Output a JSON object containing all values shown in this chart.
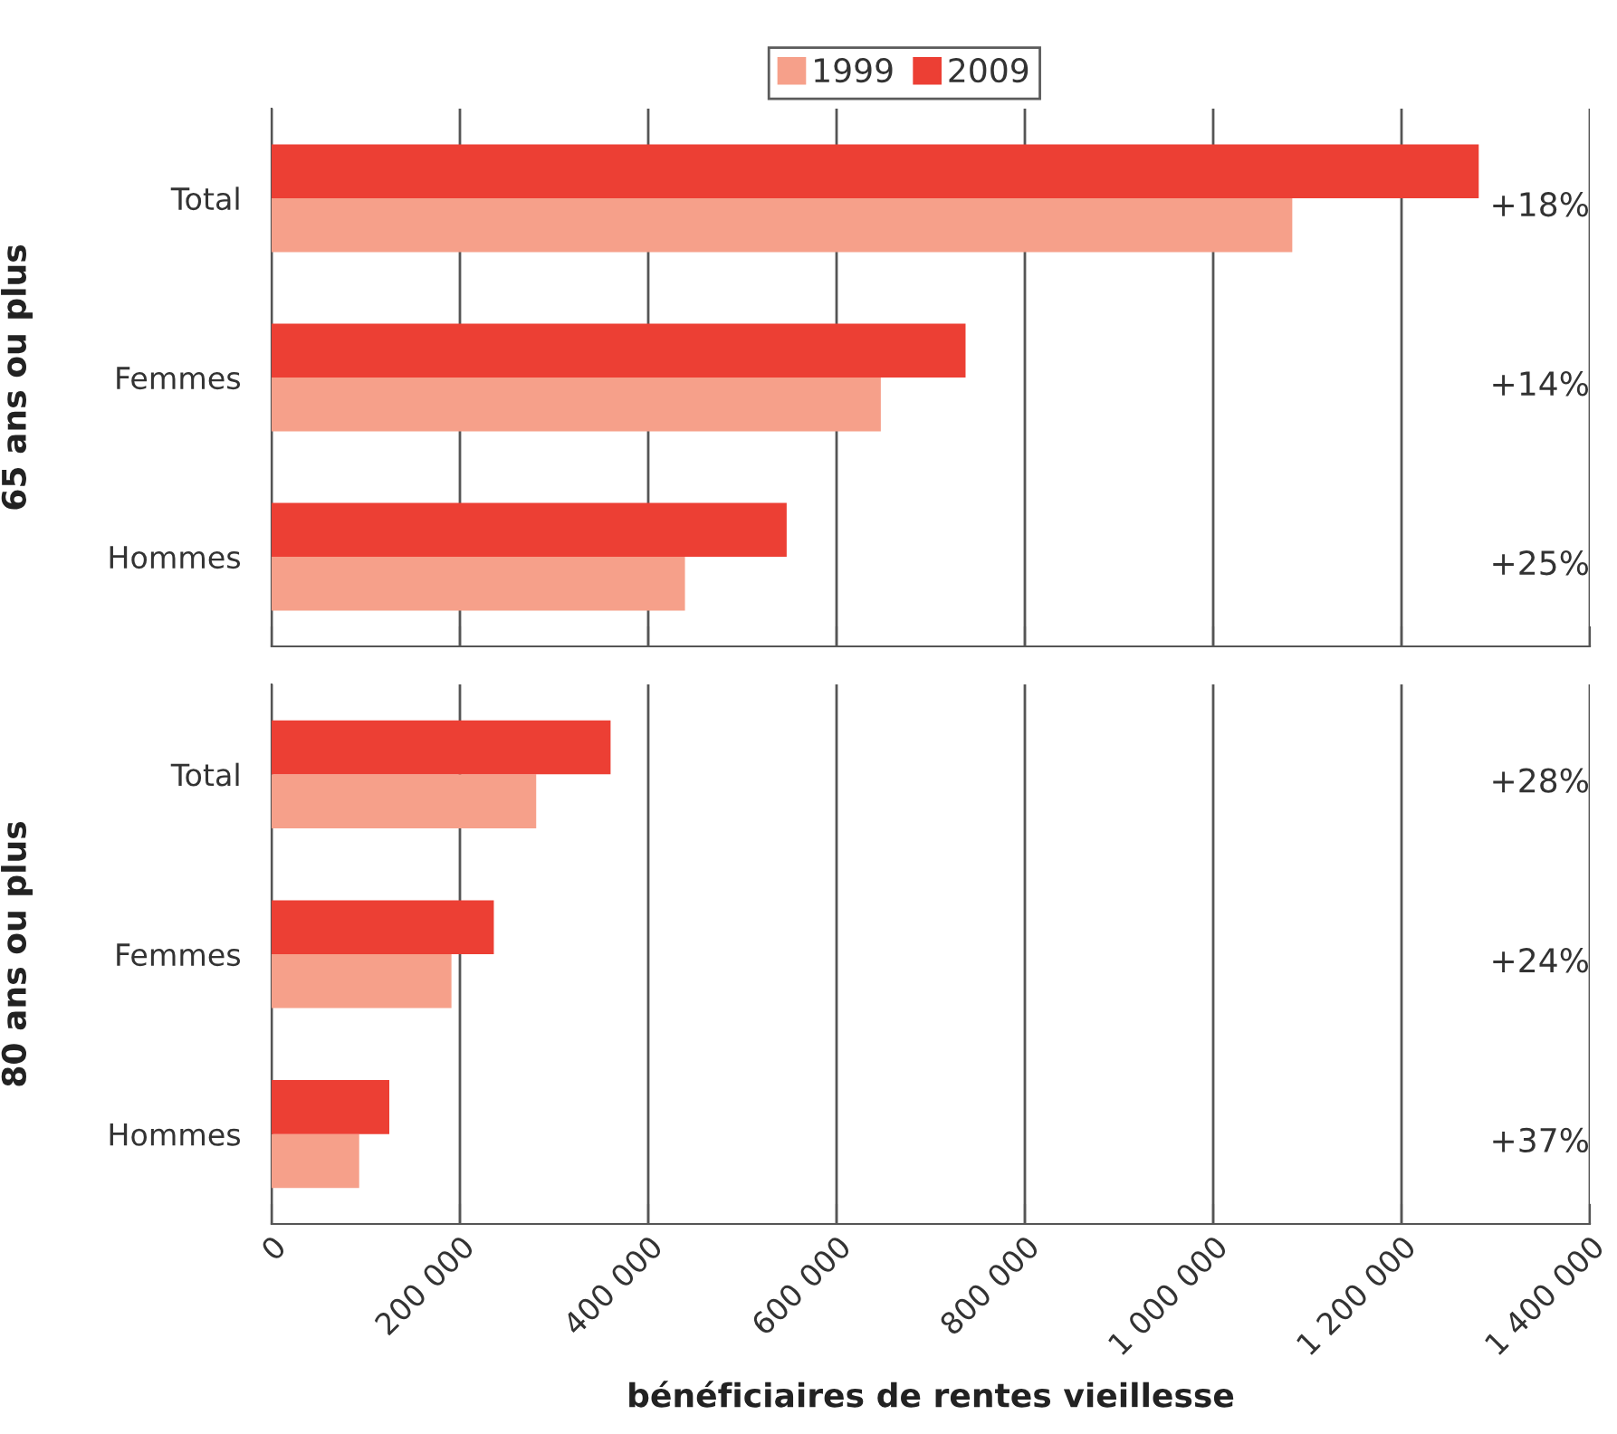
{
  "chart_data": [
    {
      "type": "bar",
      "orientation": "horizontal",
      "ylabel": "65 ans ou plus",
      "categories": [
        "Total",
        "Femmes",
        "Hommes"
      ],
      "series": [
        {
          "name": "1999",
          "color": "#f6a08a",
          "values": [
            1084000,
            647000,
            439000
          ]
        },
        {
          "name": "2009",
          "color": "#ec3f34",
          "values": [
            1282000,
            737000,
            547000
          ]
        }
      ],
      "annotations": [
        "+18%",
        "+14%",
        "+25%"
      ],
      "xlim": [
        0,
        1400000
      ],
      "xticks": [
        0,
        200000,
        400000,
        600000,
        800000,
        1000000,
        1200000,
        1400000
      ],
      "tick_labels": "y",
      "grid": "x",
      "legend": "top"
    },
    {
      "type": "bar",
      "orientation": "horizontal",
      "ylabel": "80 ans ou plus",
      "xlabel": "bénéficiaires de rentes vieillesse",
      "categories": [
        "Total",
        "Femmes",
        "Hommes"
      ],
      "series": [
        {
          "name": "1999",
          "color": "#f6a08a",
          "values": [
            281000,
            191000,
            93000
          ]
        },
        {
          "name": "2009",
          "color": "#ec3f34",
          "values": [
            360000,
            236000,
            125000
          ]
        }
      ],
      "annotations": [
        "+28%",
        "+24%",
        "+37%"
      ],
      "xlim": [
        0,
        1400000
      ],
      "xticks": [
        0,
        {
          "value": 200000,
          "label": "200 000"
        },
        {
          "value": 400000,
          "label": "400 000"
        },
        {
          "value": 600000,
          "label": "600 000"
        },
        {
          "value": 800000,
          "label": "800 000"
        },
        {
          "value": 1000000,
          "label": "1 000 000"
        },
        {
          "value": 1200000,
          "label": "1 200 000"
        },
        {
          "value": 1400000,
          "label": "1 400 000"
        }
      ],
      "grid": "x"
    }
  ]
}
